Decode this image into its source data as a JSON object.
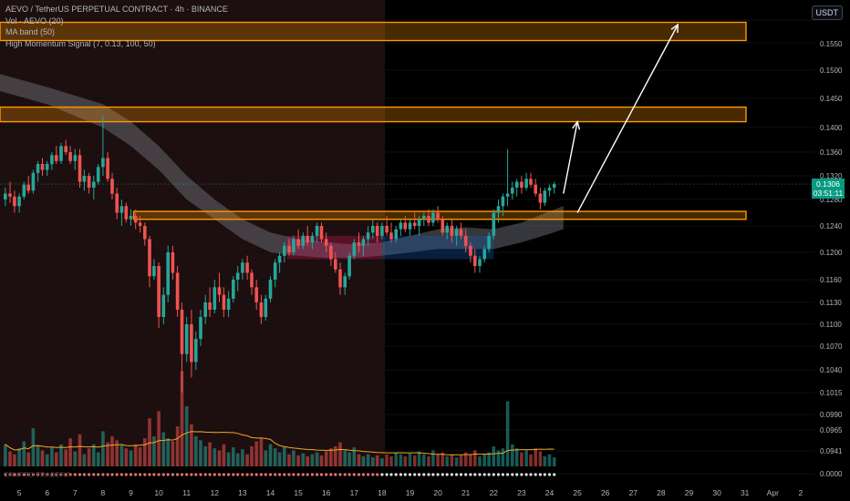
{
  "legend": {
    "symbol": "AEVO / TetherUS PERPETUAL CONTRACT · 4h · BINANCE",
    "vol": "Vol · AEVO (20)",
    "ma_band": "MA band (50)",
    "signal": "High Momentum Signal (7, 0.13, 100, 50)"
  },
  "currency": "USDT",
  "last_price": {
    "value": "0.1306",
    "countdown": "03:51:11"
  },
  "watermark": "CRYPTO TRADERS",
  "colors": {
    "up": "#26a69a",
    "down": "#ef5350",
    "zone": "#ff9800",
    "band": "#787b86",
    "ma": "#f5a623"
  },
  "chart_data": {
    "type": "candlestick",
    "y_ticks": [
      "0.1550",
      "0.1500",
      "0.1450",
      "0.1400",
      "0.1360",
      "0.1320",
      "0.1280",
      "0.1240",
      "0.1200",
      "0.1160",
      "0.1130",
      "0.1100",
      "0.1070",
      "0.1040",
      "0.1015",
      "0.0990",
      "0.0965",
      "0.0941",
      "0.0000"
    ],
    "x_ticks": [
      "5",
      "6",
      "7",
      "8",
      "9",
      "10",
      "11",
      "12",
      "13",
      "14",
      "15",
      "16",
      "17",
      "18",
      "19",
      "20",
      "21",
      "22",
      "23",
      "24",
      "25",
      "26",
      "27",
      "28",
      "29",
      "30",
      "31",
      "Apr",
      "2"
    ],
    "last_price": 0.1306,
    "zones": [
      {
        "low": 0.1565,
        "high": 0.1605
      },
      {
        "low": 0.141,
        "high": 0.1435
      },
      {
        "low": 0.125,
        "high": 0.1262
      }
    ],
    "projection_paths": [
      {
        "points": [
          {
            "day": 24.5,
            "price": 0.129
          },
          {
            "day": 25.0,
            "price": 0.141
          }
        ]
      },
      {
        "points": [
          {
            "day": 25.0,
            "price": 0.126
          },
          {
            "day": 28.6,
            "price": 0.16
          }
        ]
      }
    ],
    "candles": [
      [
        4.5,
        0.128,
        0.13,
        0.127,
        0.129
      ],
      [
        4.67,
        0.129,
        0.131,
        0.1275,
        0.1285
      ],
      [
        4.83,
        0.1285,
        0.1295,
        0.126,
        0.127
      ],
      [
        5.0,
        0.127,
        0.129,
        0.126,
        0.1285
      ],
      [
        5.17,
        0.1285,
        0.131,
        0.128,
        0.1305
      ],
      [
        5.33,
        0.1305,
        0.132,
        0.129,
        0.1295
      ],
      [
        5.5,
        0.1295,
        0.133,
        0.129,
        0.1325
      ],
      [
        5.67,
        0.1325,
        0.1345,
        0.131,
        0.134
      ],
      [
        5.83,
        0.134,
        0.135,
        0.132,
        0.133
      ],
      [
        6.0,
        0.133,
        0.1345,
        0.132,
        0.134
      ],
      [
        6.17,
        0.134,
        0.136,
        0.133,
        0.1355
      ],
      [
        6.33,
        0.1355,
        0.137,
        0.134,
        0.1345
      ],
      [
        6.5,
        0.1345,
        0.1375,
        0.134,
        0.137
      ],
      [
        6.67,
        0.137,
        0.138,
        0.1355,
        0.136
      ],
      [
        6.83,
        0.136,
        0.137,
        0.134,
        0.1345
      ],
      [
        7.0,
        0.1345,
        0.1365,
        0.133,
        0.1355
      ],
      [
        7.17,
        0.1355,
        0.1365,
        0.13,
        0.131
      ],
      [
        7.33,
        0.131,
        0.133,
        0.1295,
        0.132
      ],
      [
        7.5,
        0.132,
        0.1325,
        0.129,
        0.13
      ],
      [
        7.67,
        0.13,
        0.132,
        0.128,
        0.131
      ],
      [
        7.83,
        0.131,
        0.134,
        0.1305,
        0.1335
      ],
      [
        8.0,
        0.1335,
        0.142,
        0.132,
        0.135
      ],
      [
        8.17,
        0.135,
        0.136,
        0.131,
        0.1315
      ],
      [
        8.33,
        0.1315,
        0.1325,
        0.128,
        0.129
      ],
      [
        8.5,
        0.129,
        0.13,
        0.125,
        0.126
      ],
      [
        8.67,
        0.126,
        0.128,
        0.124,
        0.127
      ],
      [
        8.83,
        0.127,
        0.1275,
        0.1245,
        0.125
      ],
      [
        9.0,
        0.125,
        0.1265,
        0.124,
        0.1255
      ],
      [
        9.17,
        0.1255,
        0.1265,
        0.1235,
        0.1245
      ],
      [
        9.33,
        0.1245,
        0.1255,
        0.123,
        0.124
      ],
      [
        9.5,
        0.124,
        0.1245,
        0.121,
        0.122
      ],
      [
        9.67,
        0.122,
        0.1225,
        0.115,
        0.1165
      ],
      [
        9.83,
        0.1165,
        0.119,
        0.116,
        0.118
      ],
      [
        10.0,
        0.118,
        0.1185,
        0.1095,
        0.111
      ],
      [
        10.17,
        0.111,
        0.115,
        0.11,
        0.114
      ],
      [
        10.33,
        0.114,
        0.121,
        0.113,
        0.12
      ],
      [
        10.5,
        0.12,
        0.121,
        0.116,
        0.117
      ],
      [
        10.67,
        0.117,
        0.118,
        0.111,
        0.112
      ],
      [
        10.83,
        0.112,
        0.113,
        0.101,
        0.106
      ],
      [
        11.0,
        0.106,
        0.111,
        0.105,
        0.11
      ],
      [
        11.17,
        0.11,
        0.112,
        0.103,
        0.105
      ],
      [
        11.33,
        0.105,
        0.109,
        0.104,
        0.108
      ],
      [
        11.5,
        0.108,
        0.112,
        0.107,
        0.111
      ],
      [
        11.67,
        0.111,
        0.114,
        0.11,
        0.113
      ],
      [
        11.83,
        0.113,
        0.115,
        0.111,
        0.112
      ],
      [
        12.0,
        0.112,
        0.116,
        0.1115,
        0.115
      ],
      [
        12.17,
        0.115,
        0.117,
        0.113,
        0.114
      ],
      [
        12.33,
        0.114,
        0.115,
        0.111,
        0.112
      ],
      [
        12.5,
        0.112,
        0.1145,
        0.111,
        0.1135
      ],
      [
        12.67,
        0.1135,
        0.1165,
        0.113,
        0.116
      ],
      [
        12.83,
        0.116,
        0.118,
        0.1145,
        0.117
      ],
      [
        13.0,
        0.117,
        0.119,
        0.116,
        0.1185
      ],
      [
        13.17,
        0.1185,
        0.1195,
        0.116,
        0.117
      ],
      [
        13.33,
        0.117,
        0.1175,
        0.114,
        0.115
      ],
      [
        13.5,
        0.115,
        0.116,
        0.112,
        0.113
      ],
      [
        13.67,
        0.113,
        0.114,
        0.11,
        0.111
      ],
      [
        13.83,
        0.111,
        0.114,
        0.1105,
        0.1135
      ],
      [
        14.0,
        0.1135,
        0.1165,
        0.113,
        0.116
      ],
      [
        14.17,
        0.116,
        0.119,
        0.115,
        0.1185
      ],
      [
        14.33,
        0.1185,
        0.12,
        0.117,
        0.1195
      ],
      [
        14.5,
        0.1195,
        0.1215,
        0.1185,
        0.121
      ],
      [
        14.67,
        0.121,
        0.122,
        0.1195,
        0.12
      ],
      [
        14.83,
        0.12,
        0.1225,
        0.1195,
        0.122
      ],
      [
        15.0,
        0.122,
        0.1235,
        0.1205,
        0.121
      ],
      [
        15.17,
        0.121,
        0.123,
        0.1205,
        0.1225
      ],
      [
        15.33,
        0.1225,
        0.124,
        0.121,
        0.1215
      ],
      [
        15.5,
        0.1215,
        0.123,
        0.1205,
        0.1225
      ],
      [
        15.67,
        0.1225,
        0.1245,
        0.1215,
        0.124
      ],
      [
        15.83,
        0.124,
        0.1245,
        0.1215,
        0.122
      ],
      [
        16.0,
        0.122,
        0.123,
        0.12,
        0.121
      ],
      [
        16.17,
        0.121,
        0.1215,
        0.118,
        0.119
      ],
      [
        16.33,
        0.119,
        0.12,
        0.117,
        0.1175
      ],
      [
        16.5,
        0.1175,
        0.1185,
        0.114,
        0.115
      ],
      [
        16.67,
        0.115,
        0.117,
        0.114,
        0.1165
      ],
      [
        16.83,
        0.1165,
        0.12,
        0.116,
        0.1195
      ],
      [
        17.0,
        0.1195,
        0.122,
        0.119,
        0.1215
      ],
      [
        17.17,
        0.1215,
        0.123,
        0.12,
        0.121
      ],
      [
        17.33,
        0.121,
        0.1225,
        0.1195,
        0.122
      ],
      [
        17.5,
        0.122,
        0.124,
        0.121,
        0.123
      ],
      [
        17.67,
        0.123,
        0.125,
        0.122,
        0.124
      ],
      [
        17.83,
        0.124,
        0.1245,
        0.1215,
        0.1225
      ],
      [
        18.0,
        0.1225,
        0.1245,
        0.122,
        0.124
      ],
      [
        18.17,
        0.124,
        0.1255,
        0.1225,
        0.123
      ],
      [
        18.33,
        0.123,
        0.1245,
        0.1215,
        0.122
      ],
      [
        18.5,
        0.122,
        0.124,
        0.1215,
        0.1235
      ],
      [
        18.67,
        0.1235,
        0.125,
        0.1225,
        0.1245
      ],
      [
        18.83,
        0.1245,
        0.1255,
        0.123,
        0.1235
      ],
      [
        19.0,
        0.1235,
        0.125,
        0.1225,
        0.1245
      ],
      [
        19.17,
        0.1245,
        0.126,
        0.1235,
        0.124
      ],
      [
        19.33,
        0.124,
        0.1255,
        0.1225,
        0.125
      ],
      [
        19.5,
        0.125,
        0.126,
        0.124,
        0.1255
      ],
      [
        19.67,
        0.1255,
        0.1265,
        0.124,
        0.1245
      ],
      [
        19.83,
        0.1245,
        0.1265,
        0.124,
        0.126
      ],
      [
        20.0,
        0.126,
        0.127,
        0.1245,
        0.125
      ],
      [
        20.17,
        0.125,
        0.1255,
        0.1225,
        0.123
      ],
      [
        20.33,
        0.123,
        0.1245,
        0.122,
        0.124
      ],
      [
        20.5,
        0.124,
        0.125,
        0.1215,
        0.1225
      ],
      [
        20.67,
        0.1225,
        0.124,
        0.121,
        0.1235
      ],
      [
        20.83,
        0.1235,
        0.1245,
        0.122,
        0.1225
      ],
      [
        21.0,
        0.1225,
        0.1235,
        0.12,
        0.121
      ],
      [
        21.17,
        0.121,
        0.1215,
        0.1185,
        0.1195
      ],
      [
        21.33,
        0.1195,
        0.1205,
        0.117,
        0.118
      ],
      [
        21.5,
        0.118,
        0.1195,
        0.117,
        0.119
      ],
      [
        21.67,
        0.119,
        0.121,
        0.1185,
        0.1205
      ],
      [
        21.83,
        0.1205,
        0.123,
        0.12,
        0.1225
      ],
      [
        22.0,
        0.1225,
        0.1265,
        0.122,
        0.126
      ],
      [
        22.17,
        0.126,
        0.128,
        0.1245,
        0.127
      ],
      [
        22.33,
        0.127,
        0.129,
        0.1255,
        0.1285
      ],
      [
        22.5,
        0.1285,
        0.1365,
        0.127,
        0.129
      ],
      [
        22.67,
        0.129,
        0.131,
        0.128,
        0.13
      ],
      [
        22.83,
        0.13,
        0.1315,
        0.1285,
        0.131
      ],
      [
        23.0,
        0.131,
        0.132,
        0.129,
        0.13
      ],
      [
        23.17,
        0.13,
        0.1325,
        0.1295,
        0.1315
      ],
      [
        23.33,
        0.1315,
        0.1325,
        0.13,
        0.1305
      ],
      [
        23.5,
        0.1305,
        0.1315,
        0.1285,
        0.129
      ],
      [
        23.67,
        0.129,
        0.13,
        0.1265,
        0.1275
      ],
      [
        23.83,
        0.1275,
        0.13,
        0.127,
        0.1295
      ],
      [
        24.0,
        0.1295,
        0.1305,
        0.1285,
        0.13
      ],
      [
        24.17,
        0.13,
        0.131,
        0.129,
        0.1306
      ]
    ],
    "volume": [
      [
        4.5,
        0.22
      ],
      [
        4.67,
        0.15
      ],
      [
        4.83,
        0.12
      ],
      [
        5.0,
        0.18
      ],
      [
        5.17,
        0.25
      ],
      [
        5.33,
        0.14
      ],
      [
        5.5,
        0.38
      ],
      [
        5.67,
        0.21
      ],
      [
        5.83,
        0.16
      ],
      [
        6.0,
        0.12
      ],
      [
        6.17,
        0.19
      ],
      [
        6.33,
        0.14
      ],
      [
        6.5,
        0.22
      ],
      [
        6.67,
        0.17
      ],
      [
        6.83,
        0.28
      ],
      [
        7.0,
        0.15
      ],
      [
        7.17,
        0.32
      ],
      [
        7.33,
        0.12
      ],
      [
        7.5,
        0.18
      ],
      [
        7.67,
        0.22
      ],
      [
        7.83,
        0.14
      ],
      [
        8.0,
        0.35
      ],
      [
        8.17,
        0.24
      ],
      [
        8.33,
        0.3
      ],
      [
        8.5,
        0.26
      ],
      [
        8.67,
        0.21
      ],
      [
        8.83,
        0.18
      ],
      [
        9.0,
        0.16
      ],
      [
        9.17,
        0.22
      ],
      [
        9.33,
        0.19
      ],
      [
        9.5,
        0.28
      ],
      [
        9.67,
        0.48
      ],
      [
        9.83,
        0.3
      ],
      [
        10.0,
        0.55
      ],
      [
        10.17,
        0.34
      ],
      [
        10.33,
        0.28
      ],
      [
        10.5,
        0.25
      ],
      [
        10.67,
        0.4
      ],
      [
        10.83,
        0.95
      ],
      [
        11.0,
        0.6
      ],
      [
        11.17,
        0.42
      ],
      [
        11.33,
        0.3
      ],
      [
        11.5,
        0.26
      ],
      [
        11.67,
        0.2
      ],
      [
        11.83,
        0.24
      ],
      [
        12.0,
        0.18
      ],
      [
        12.17,
        0.16
      ],
      [
        12.33,
        0.22
      ],
      [
        12.5,
        0.14
      ],
      [
        12.67,
        0.19
      ],
      [
        12.83,
        0.13
      ],
      [
        13.0,
        0.17
      ],
      [
        13.17,
        0.12
      ],
      [
        13.33,
        0.2
      ],
      [
        13.5,
        0.25
      ],
      [
        13.67,
        0.28
      ],
      [
        13.83,
        0.16
      ],
      [
        14.0,
        0.22
      ],
      [
        14.17,
        0.18
      ],
      [
        14.33,
        0.14
      ],
      [
        14.5,
        0.2
      ],
      [
        14.67,
        0.12
      ],
      [
        14.83,
        0.16
      ],
      [
        15.0,
        0.11
      ],
      [
        15.17,
        0.13
      ],
      [
        15.33,
        0.1
      ],
      [
        15.5,
        0.12
      ],
      [
        15.67,
        0.14
      ],
      [
        15.83,
        0.11
      ],
      [
        16.0,
        0.15
      ],
      [
        16.17,
        0.18
      ],
      [
        16.33,
        0.2
      ],
      [
        16.5,
        0.24
      ],
      [
        16.67,
        0.16
      ],
      [
        16.83,
        0.14
      ],
      [
        17.0,
        0.19
      ],
      [
        17.17,
        0.12
      ],
      [
        17.33,
        0.1
      ],
      [
        17.5,
        0.12
      ],
      [
        17.67,
        0.09
      ],
      [
        17.83,
        0.11
      ],
      [
        18.0,
        0.08
      ],
      [
        18.17,
        0.12
      ],
      [
        18.33,
        0.1
      ],
      [
        18.5,
        0.14
      ],
      [
        18.67,
        0.12
      ],
      [
        18.83,
        0.1
      ],
      [
        19.0,
        0.13
      ],
      [
        19.17,
        0.11
      ],
      [
        19.33,
        0.15
      ],
      [
        19.5,
        0.12
      ],
      [
        19.67,
        0.1
      ],
      [
        19.83,
        0.16
      ],
      [
        20.0,
        0.12
      ],
      [
        20.17,
        0.14
      ],
      [
        20.33,
        0.1
      ],
      [
        20.5,
        0.12
      ],
      [
        20.67,
        0.09
      ],
      [
        20.83,
        0.11
      ],
      [
        21.0,
        0.14
      ],
      [
        21.17,
        0.12
      ],
      [
        21.33,
        0.16
      ],
      [
        21.5,
        0.1
      ],
      [
        21.67,
        0.12
      ],
      [
        21.83,
        0.14
      ],
      [
        22.0,
        0.2
      ],
      [
        22.17,
        0.16
      ],
      [
        22.33,
        0.18
      ],
      [
        22.5,
        0.65
      ],
      [
        22.67,
        0.22
      ],
      [
        22.83,
        0.18
      ],
      [
        23.0,
        0.14
      ],
      [
        23.17,
        0.16
      ],
      [
        23.33,
        0.12
      ],
      [
        23.5,
        0.18
      ],
      [
        23.67,
        0.15
      ],
      [
        23.83,
        0.1
      ],
      [
        24.0,
        0.12
      ],
      [
        24.17,
        0.09
      ]
    ]
  }
}
